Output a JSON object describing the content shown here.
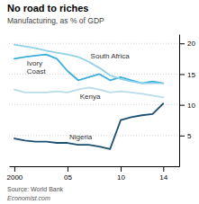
{
  "chart_data": {
    "type": "line",
    "title": "No road to riches",
    "subtitle": "Manufacturing, as % of GDP",
    "source": "Source: World Bank",
    "footer": "Economist.com",
    "x": [
      2000,
      2001,
      2002,
      2003,
      2004,
      2005,
      2006,
      2007,
      2008,
      2009,
      2010,
      2011,
      2012,
      2013,
      2014
    ],
    "series": [
      {
        "name": "Ivory\nCoast",
        "color": "#3aafdc",
        "values": [
          17.5,
          17.8,
          18.0,
          18.2,
          17.5,
          15.5,
          14.0,
          14.5,
          15.0,
          14.0,
          14.5,
          14.0,
          13.5,
          13.8,
          13.5
        ]
      },
      {
        "name": "South Africa",
        "color": "#90d0e8",
        "values": [
          19.8,
          19.5,
          19.2,
          18.8,
          18.5,
          18.2,
          17.8,
          17.0,
          16.0,
          14.8,
          14.2,
          13.8,
          13.5,
          13.5,
          13.5
        ]
      },
      {
        "name": "Kenya",
        "color": "#b8dcea",
        "values": [
          12.5,
          12.0,
          12.0,
          12.0,
          12.2,
          12.0,
          12.5,
          12.8,
          12.5,
          12.0,
          12.2,
          12.0,
          11.8,
          11.5,
          11.2
        ]
      },
      {
        "name": "Nigeria",
        "color": "#1b4f72",
        "values": [
          4.5,
          4.2,
          4.0,
          4.0,
          3.8,
          3.8,
          3.5,
          3.5,
          3.2,
          2.8,
          7.5,
          8.0,
          8.3,
          8.5,
          10.2
        ]
      }
    ],
    "xlim": [
      1999.5,
      2015.5
    ],
    "xticks": [
      2000,
      {
        "value": 2005,
        "label": "05"
      },
      {
        "value": 2010,
        "label": "10"
      },
      {
        "value": 2014,
        "label": "14"
      }
    ],
    "ylim": [
      0,
      21.5
    ],
    "yticks": [
      5,
      10,
      15,
      20
    ],
    "grid": true
  }
}
